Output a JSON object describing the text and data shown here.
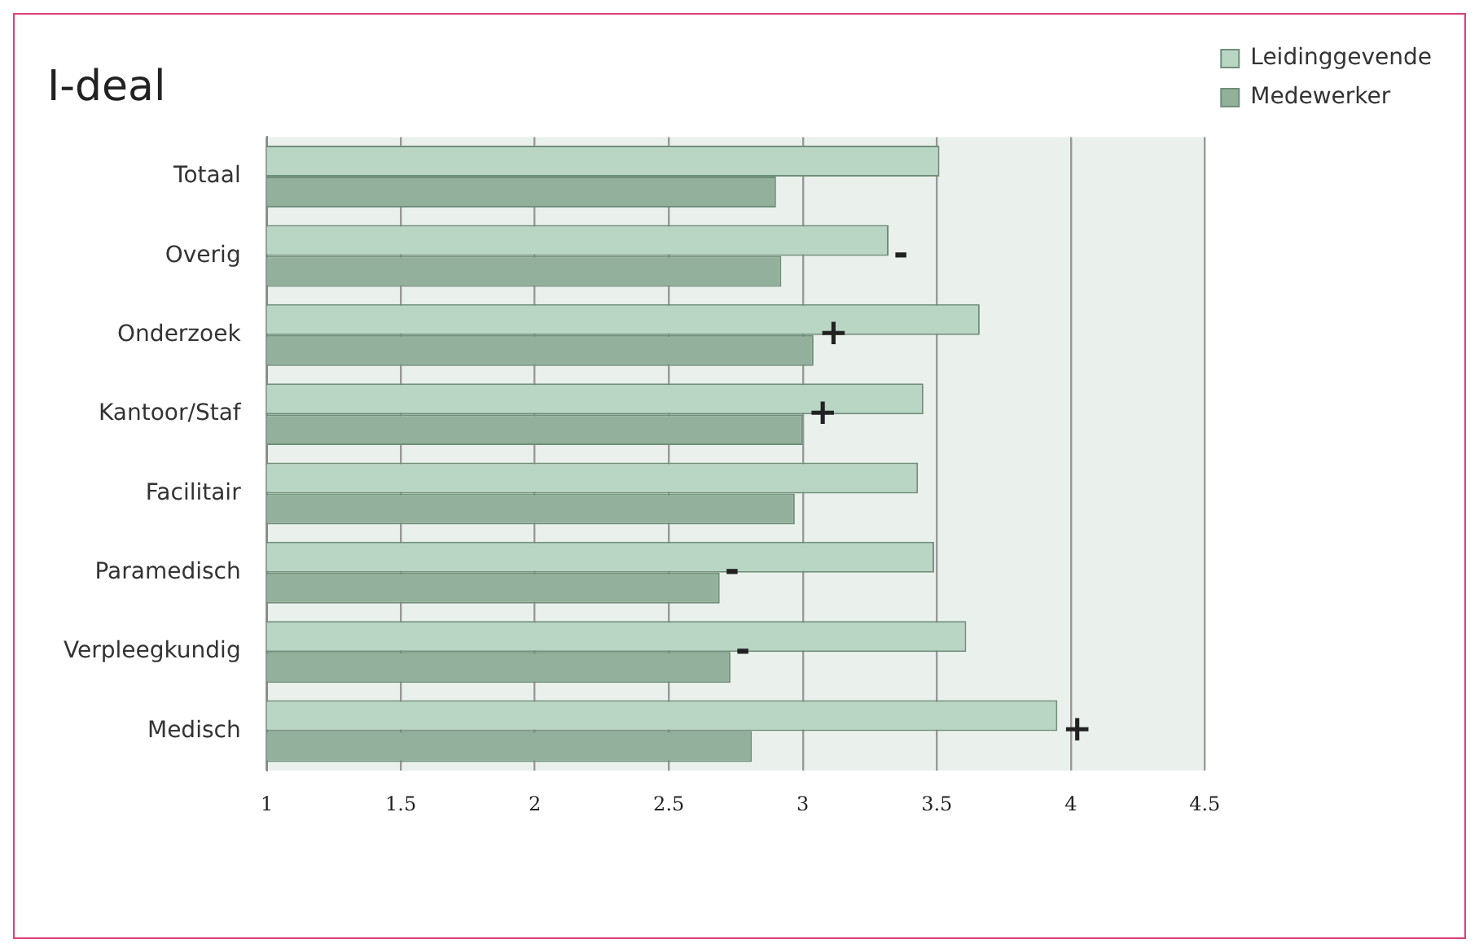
{
  "chart_data": {
    "type": "bar",
    "orientation": "horizontal",
    "title": "I-deal",
    "categories": [
      "Totaal",
      "Overig",
      "Onderzoek",
      "Kantoor/Staf",
      "Facilitair",
      "Paramedisch",
      "Verpleegkundig",
      "Medisch"
    ],
    "series": [
      {
        "name": "Leidinggevende",
        "color": "#b9d5c4",
        "values": [
          3.51,
          3.32,
          3.66,
          3.45,
          3.43,
          3.49,
          3.61,
          3.95
        ]
      },
      {
        "name": "Medewerker",
        "color": "#93b09c",
        "values": [
          2.9,
          2.92,
          3.04,
          3.0,
          2.97,
          2.69,
          2.73,
          2.81
        ]
      }
    ],
    "xlim": [
      1,
      4.5
    ],
    "xticks": [
      1,
      1.5,
      2,
      2.5,
      3,
      3.5,
      4,
      4.5
    ],
    "grid": "x",
    "legend": "top right",
    "annotations": [
      {
        "text": "-",
        "x": 3.32,
        "y": "Overig"
      },
      {
        "text": "+",
        "x": 3.04,
        "y": "Onderzoek"
      },
      {
        "text": "+",
        "x": 3.0,
        "y": "Kantoor/Staf"
      },
      {
        "text": "-",
        "x": 2.69,
        "y": "Paramedisch"
      },
      {
        "text": "-",
        "x": 2.73,
        "y": "Verpleegkundig"
      },
      {
        "text": "+",
        "x": 3.95,
        "y": "Medisch"
      }
    ]
  }
}
